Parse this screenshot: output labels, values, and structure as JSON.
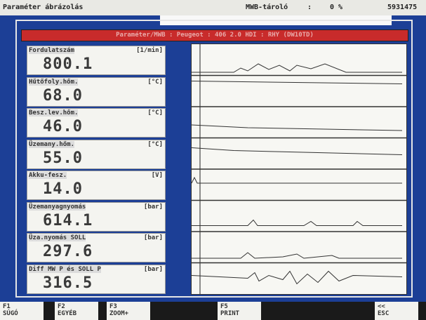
{
  "header": {
    "title": "Paraméter ábrázolás",
    "storage_label": "MWB-tároló",
    "separator": ":",
    "storage_value": "0 %",
    "counter": "5931475"
  },
  "banner": "Paraméter/MWB : Peugeot : 406 2.0 HDI : RHY (DW10TD)",
  "parameters": [
    {
      "name": "Fordulatszám",
      "unit": "[1/min]",
      "value": "800.1"
    },
    {
      "name": "Hűtőfoly.hőm.",
      "unit": "[°C]",
      "value": "68.0"
    },
    {
      "name": "Besz.lev.hőm.",
      "unit": "[°C]",
      "value": "46.0"
    },
    {
      "name": "Üzemany.hőm.",
      "unit": "[°C]",
      "value": "55.0"
    },
    {
      "name": "Akku-fesz.",
      "unit": "[V]",
      "value": "14.0"
    },
    {
      "name": "Üzemanyagnyomás",
      "unit": "[bar]",
      "value": "614.1"
    },
    {
      "name": "Üza.nyomás SOLL",
      "unit": "[bar]",
      "value": "297.6"
    },
    {
      "name": "Diff MW P és SOLL P",
      "unit": "[bar]",
      "value": "316.5"
    }
  ],
  "function_keys": [
    {
      "key": "F1",
      "label": "SÚGÓ"
    },
    {
      "key": "F2",
      "label": "EGYÉB"
    },
    {
      "key": "F3",
      "label": "ZOOM+"
    },
    {
      "key": "F5",
      "label": "PRINT"
    },
    {
      "key": "<<",
      "label": "ESC"
    }
  ]
}
